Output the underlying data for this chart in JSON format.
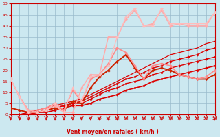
{
  "xlabel": "Vent moyen/en rafales ( km/h )",
  "xlim": [
    0,
    23
  ],
  "ylim": [
    0,
    50
  ],
  "xticks": [
    0,
    1,
    2,
    3,
    4,
    5,
    6,
    7,
    8,
    9,
    10,
    11,
    12,
    13,
    14,
    15,
    16,
    17,
    18,
    19,
    20,
    21,
    22,
    23
  ],
  "yticks": [
    0,
    5,
    10,
    15,
    20,
    25,
    30,
    35,
    40,
    45,
    50
  ],
  "bg_color": "#cce8f0",
  "grid_color": "#99bbcc",
  "series": [
    {
      "x": [
        0,
        1,
        2,
        3,
        4,
        5,
        6,
        7,
        8,
        9,
        10,
        11,
        12,
        13,
        14,
        15,
        16,
        17,
        18,
        19,
        20,
        21,
        22,
        23
      ],
      "y": [
        0,
        0,
        0,
        1,
        1,
        2,
        3,
        4,
        4,
        5,
        7,
        8,
        9,
        11,
        12,
        13,
        15,
        16,
        17,
        18,
        19,
        20,
        21,
        22
      ],
      "color": "#dd0000",
      "lw": 1.2,
      "marker": "D",
      "ms": 1.8
    },
    {
      "x": [
        0,
        1,
        2,
        3,
        4,
        5,
        6,
        7,
        8,
        9,
        10,
        11,
        12,
        13,
        14,
        15,
        16,
        17,
        18,
        19,
        20,
        21,
        22,
        23
      ],
      "y": [
        0,
        0,
        0,
        1,
        2,
        3,
        4,
        5,
        5,
        7,
        9,
        11,
        12,
        14,
        15,
        16,
        18,
        19,
        21,
        22,
        23,
        24,
        25,
        26
      ],
      "color": "#dd0000",
      "lw": 1.0,
      "marker": "D",
      "ms": 1.8
    },
    {
      "x": [
        0,
        1,
        2,
        3,
        4,
        5,
        6,
        7,
        8,
        9,
        10,
        11,
        12,
        13,
        14,
        15,
        16,
        17,
        18,
        19,
        20,
        21,
        22,
        23
      ],
      "y": [
        0,
        0,
        1,
        1,
        2,
        3,
        4,
        5,
        6,
        8,
        10,
        12,
        14,
        16,
        17,
        19,
        21,
        22,
        24,
        25,
        26,
        27,
        29,
        30
      ],
      "color": "#dd0000",
      "lw": 1.0,
      "marker": "D",
      "ms": 1.8
    },
    {
      "x": [
        0,
        1,
        2,
        3,
        4,
        5,
        6,
        7,
        8,
        9,
        10,
        11,
        12,
        13,
        14,
        15,
        16,
        17,
        18,
        19,
        20,
        21,
        22,
        23
      ],
      "y": [
        0,
        0,
        1,
        2,
        3,
        4,
        5,
        6,
        7,
        9,
        11,
        13,
        15,
        17,
        19,
        21,
        23,
        25,
        27,
        28,
        29,
        30,
        32,
        33
      ],
      "color": "#dd0000",
      "lw": 0.9,
      "marker": null,
      "ms": 0
    },
    {
      "x": [
        0,
        1,
        2,
        3,
        4,
        5,
        6,
        7,
        8,
        9,
        10,
        11,
        12,
        13,
        14,
        15,
        16,
        17,
        18,
        19,
        20,
        21,
        22,
        23
      ],
      "y": [
        3,
        2,
        1,
        1,
        2,
        3,
        2,
        6,
        5,
        12,
        17,
        20,
        24,
        27,
        21,
        16,
        20,
        21,
        20,
        18,
        17,
        16,
        16,
        18
      ],
      "color": "#cc2200",
      "lw": 1.4,
      "marker": "D",
      "ms": 2.2
    },
    {
      "x": [
        0,
        1,
        2,
        3,
        4,
        5,
        6,
        7,
        8,
        9,
        10,
        11,
        12,
        13,
        14,
        15,
        16,
        17,
        18,
        19,
        20,
        21,
        22,
        23
      ],
      "y": [
        16,
        8,
        2,
        2,
        3,
        5,
        2,
        11,
        6,
        16,
        18,
        23,
        30,
        28,
        22,
        16,
        22,
        23,
        22,
        18,
        17,
        16,
        17,
        20
      ],
      "color": "#ff8888",
      "lw": 1.2,
      "marker": "D",
      "ms": 2.2
    },
    {
      "x": [
        0,
        1,
        2,
        3,
        4,
        5,
        6,
        7,
        8,
        9,
        10,
        11,
        12,
        13,
        14,
        15,
        16,
        17,
        18,
        19,
        20,
        21,
        22,
        23
      ],
      "y": [
        16,
        8,
        2,
        1,
        2,
        4,
        1,
        1,
        12,
        18,
        18,
        35,
        35,
        43,
        47,
        40,
        41,
        47,
        40,
        41,
        40,
        40,
        40,
        46
      ],
      "color": "#ffaaaa",
      "lw": 1.1,
      "marker": "D",
      "ms": 2.2
    },
    {
      "x": [
        0,
        1,
        2,
        3,
        4,
        5,
        6,
        7,
        8,
        9,
        10,
        11,
        12,
        13,
        14,
        15,
        16,
        17,
        18,
        19,
        20,
        21,
        22,
        23
      ],
      "y": [
        16,
        8,
        1,
        1,
        2,
        5,
        1,
        12,
        6,
        17,
        18,
        22,
        35,
        44,
        48,
        40,
        40,
        48,
        41,
        41,
        41,
        41,
        41,
        46
      ],
      "color": "#ffbbbb",
      "lw": 1.0,
      "marker": "D",
      "ms": 2.0
    }
  ],
  "wind_symbols": [
    0,
    1,
    2,
    3,
    4,
    5,
    6,
    7,
    8,
    9,
    10,
    11,
    12,
    13,
    14,
    15,
    16,
    17,
    18,
    19,
    20,
    21,
    22,
    23
  ],
  "xlabel_color": "#cc0000",
  "tick_color": "#cc0000",
  "spine_color": "#cc0000"
}
